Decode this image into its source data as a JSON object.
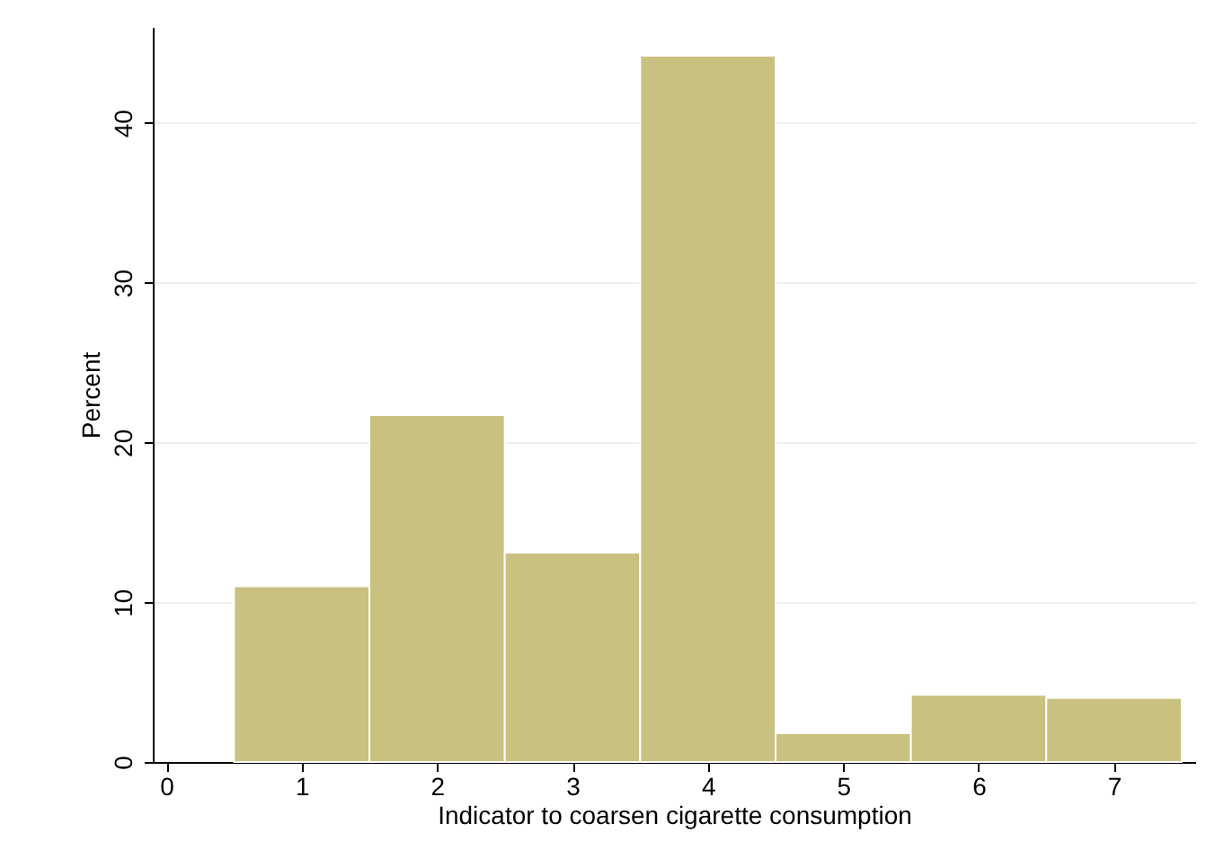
{
  "chart_data": {
    "type": "histogram",
    "xlabel": "Indicator to coarsen cigarette consumption",
    "ylabel": "Percent",
    "bins": [
      0.5,
      1.5,
      2.5,
      3.5,
      4.5,
      5.5,
      6.5,
      7.5
    ],
    "values": [
      11.0,
      21.7,
      13.1,
      44.2,
      1.8,
      4.2,
      4.0
    ],
    "color": "#c9c17f",
    "xlim": [
      -0.1,
      7.6
    ],
    "xticks": [
      0,
      1,
      2,
      3,
      4,
      5,
      6,
      7
    ],
    "ylim": [
      0,
      46
    ],
    "yticks": [
      0,
      10,
      20,
      30,
      40
    ],
    "grid": "y"
  }
}
